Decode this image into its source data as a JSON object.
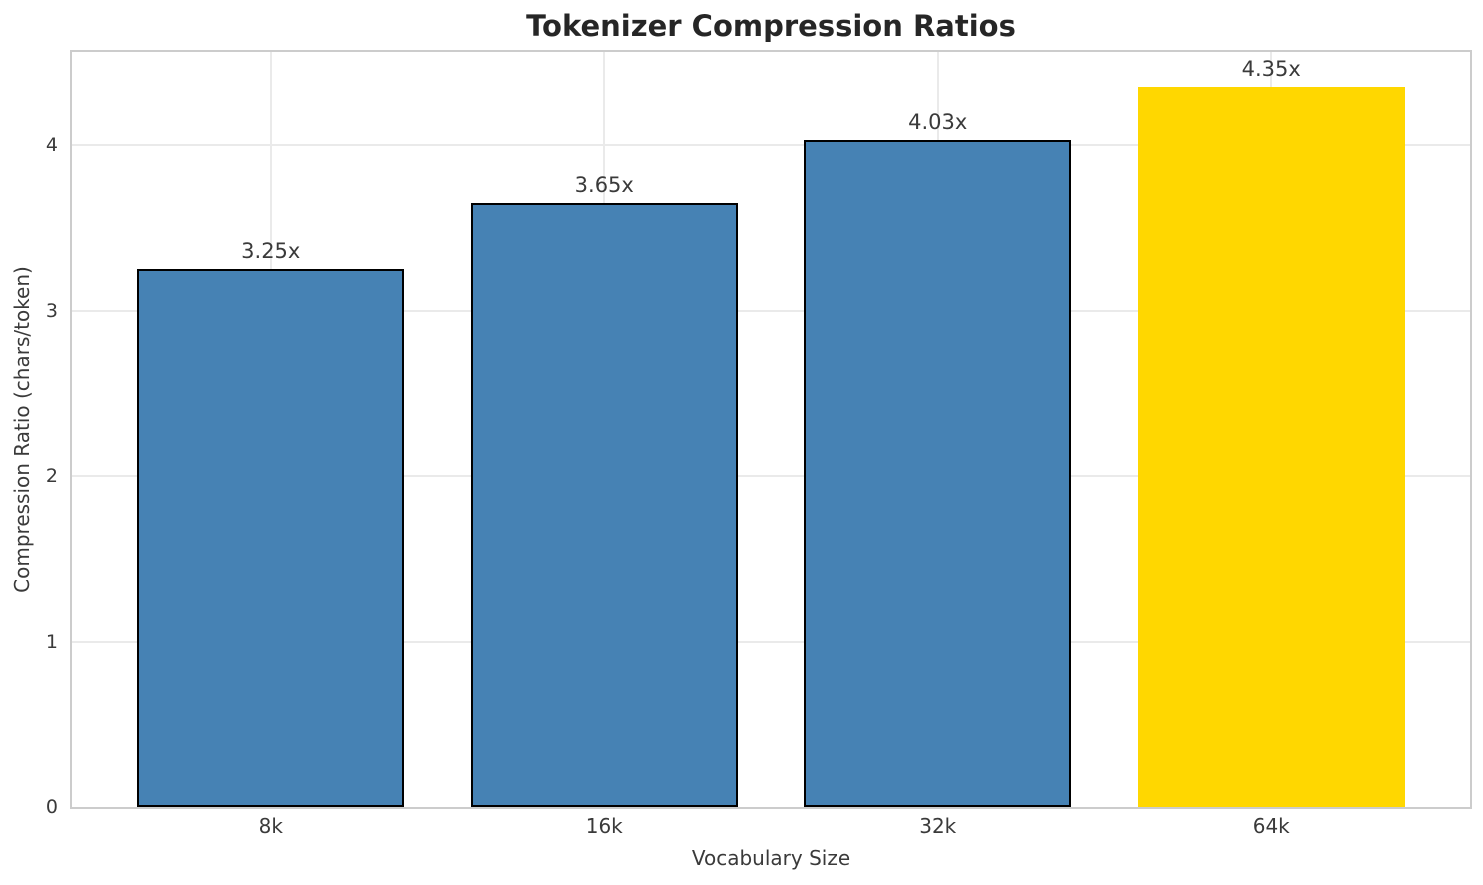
{
  "chart_data": {
    "type": "bar",
    "title": "Tokenizer Compression Ratios",
    "xlabel": "Vocabulary Size",
    "ylabel": "Compression Ratio (chars/token)",
    "categories": [
      "8k",
      "16k",
      "32k",
      "64k"
    ],
    "values": [
      3.25,
      3.65,
      4.03,
      4.35
    ],
    "bar_labels": [
      "3.25x",
      "3.65x",
      "4.03x",
      "4.35x"
    ],
    "bar_colors": [
      "#4682B4",
      "#4682B4",
      "#4682B4",
      "#FFD700"
    ],
    "bar_edge_colors": [
      "#000000",
      "#000000",
      "#000000",
      "none"
    ],
    "highlight_index": 3,
    "ylim": [
      0,
      4.56
    ],
    "yticks": [
      0,
      1,
      2,
      3,
      4
    ],
    "ytick_labels": [
      "0",
      "1",
      "2",
      "3",
      "4"
    ],
    "grid": true,
    "legend_position": "none"
  },
  "colors": {
    "bar_default": "#4682B4",
    "bar_highlight": "#FFD700",
    "bar_edge": "#000000"
  }
}
